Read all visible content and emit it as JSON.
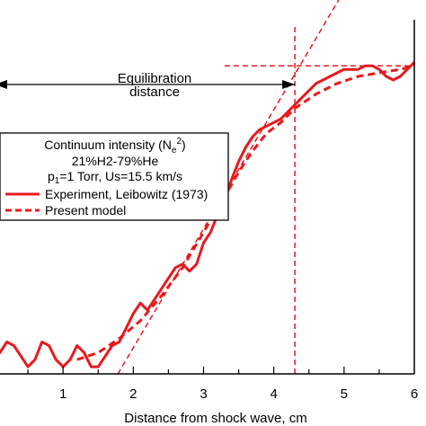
{
  "chart_data": {
    "type": "line",
    "xlabel": "Distance from shock wave, cm",
    "xlim": [
      0,
      6
    ],
    "ylim": [
      0,
      1
    ],
    "x_ticks": [
      "1",
      "2",
      "3",
      "4",
      "5",
      "6"
    ],
    "x_tick_values": [
      1,
      2,
      3,
      4,
      5,
      6
    ],
    "grid": false,
    "legend": {
      "placement": "left",
      "title_main": "Continuum intensity (N",
      "title_sub": "e",
      "title_sup": "2",
      "title_close": ")",
      "line2": "21%H2-79%He",
      "line3_p": "p",
      "line3_sub": "1",
      "line3_rest": "=1 Torr, Us=15.5 km/s"
    },
    "annotation": {
      "line1": "Equilibration",
      "line2": "distance",
      "x_start": 0,
      "x_end": 4.3
    },
    "colors": {
      "series": "#e8191e",
      "axis": "#000000"
    },
    "series": [
      {
        "name": "Experiment, Leibowitz (1973)",
        "style": "solid",
        "points": [
          [
            0,
            0.04
          ],
          [
            0.1,
            0.06
          ],
          [
            0.2,
            0.09
          ],
          [
            0.3,
            0.08
          ],
          [
            0.4,
            0.05
          ],
          [
            0.5,
            0.02
          ],
          [
            0.6,
            0.04
          ],
          [
            0.7,
            0.09
          ],
          [
            0.8,
            0.08
          ],
          [
            0.9,
            0.04
          ],
          [
            1.0,
            0.02
          ],
          [
            1.1,
            0.04
          ],
          [
            1.2,
            0.08
          ],
          [
            1.3,
            0.06
          ],
          [
            1.4,
            0.02
          ],
          [
            1.5,
            0.02
          ],
          [
            1.6,
            0.05
          ],
          [
            1.7,
            0.08
          ],
          [
            1.8,
            0.09
          ],
          [
            1.9,
            0.13
          ],
          [
            2.0,
            0.17
          ],
          [
            2.1,
            0.2
          ],
          [
            2.2,
            0.18
          ],
          [
            2.3,
            0.21
          ],
          [
            2.4,
            0.24
          ],
          [
            2.5,
            0.27
          ],
          [
            2.6,
            0.3
          ],
          [
            2.7,
            0.31
          ],
          [
            2.8,
            0.29
          ],
          [
            2.9,
            0.31
          ],
          [
            3.0,
            0.37
          ],
          [
            3.1,
            0.4
          ],
          [
            3.2,
            0.45
          ],
          [
            3.3,
            0.49
          ],
          [
            3.4,
            0.55
          ],
          [
            3.5,
            0.6
          ],
          [
            3.6,
            0.64
          ],
          [
            3.7,
            0.67
          ],
          [
            3.8,
            0.69
          ],
          [
            3.9,
            0.7
          ],
          [
            4.0,
            0.71
          ],
          [
            4.1,
            0.72
          ],
          [
            4.2,
            0.74
          ],
          [
            4.3,
            0.76
          ],
          [
            4.4,
            0.78
          ],
          [
            4.5,
            0.8
          ],
          [
            4.6,
            0.82
          ],
          [
            4.7,
            0.83
          ],
          [
            4.8,
            0.84
          ],
          [
            4.9,
            0.85
          ],
          [
            5.0,
            0.86
          ],
          [
            5.1,
            0.86
          ],
          [
            5.2,
            0.86
          ],
          [
            5.3,
            0.87
          ],
          [
            5.4,
            0.87
          ],
          [
            5.5,
            0.86
          ],
          [
            5.6,
            0.84
          ],
          [
            5.7,
            0.83
          ],
          [
            5.8,
            0.84
          ],
          [
            5.9,
            0.86
          ],
          [
            6.0,
            0.88
          ]
        ]
      },
      {
        "name": "Present model",
        "style": "dashed",
        "points": [
          [
            1.2,
            0.04
          ],
          [
            1.5,
            0.06
          ],
          [
            1.8,
            0.1
          ],
          [
            2.1,
            0.15
          ],
          [
            2.4,
            0.22
          ],
          [
            2.7,
            0.3
          ],
          [
            3.0,
            0.4
          ],
          [
            3.3,
            0.5
          ],
          [
            3.5,
            0.57
          ],
          [
            3.7,
            0.63
          ],
          [
            3.9,
            0.68
          ],
          [
            4.1,
            0.71
          ],
          [
            4.3,
            0.75
          ],
          [
            4.6,
            0.79
          ],
          [
            4.9,
            0.82
          ],
          [
            5.2,
            0.84
          ],
          [
            5.5,
            0.85
          ],
          [
            5.8,
            0.86
          ],
          [
            6.0,
            0.87
          ]
        ]
      }
    ],
    "reference_lines": [
      {
        "kind": "tangent",
        "from": [
          1.78,
          0
        ],
        "to": [
          5.65,
          1.3
        ]
      },
      {
        "kind": "horizontal",
        "y": 0.87,
        "x_start": 3.3,
        "x_end": 6.0
      },
      {
        "kind": "vertical",
        "x": 4.3
      }
    ]
  }
}
